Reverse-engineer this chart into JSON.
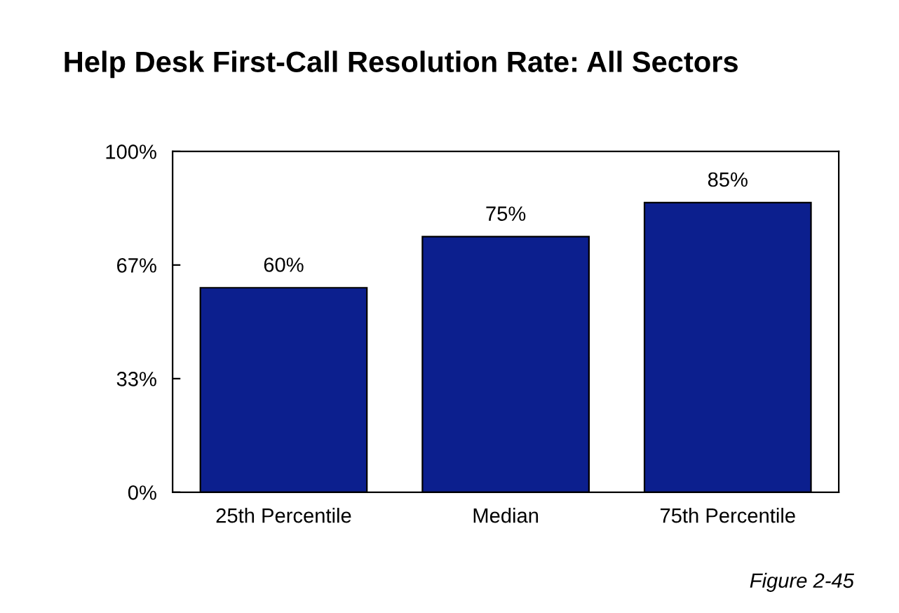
{
  "chart_data": {
    "type": "bar",
    "title": "Help Desk First-Call Resolution Rate: All Sectors",
    "categories": [
      "25th Percentile",
      "Median",
      "75th Percentile"
    ],
    "values": [
      60,
      75,
      85
    ],
    "value_labels": [
      "60%",
      "75%",
      "85%"
    ],
    "color": "#0c1f8e",
    "ylim": [
      0,
      100
    ],
    "yticks": [
      {
        "value": 0,
        "label": "0%"
      },
      {
        "value": 33.33,
        "label": "33%"
      },
      {
        "value": 66.67,
        "label": "67%"
      },
      {
        "value": 100,
        "label": "100%"
      }
    ],
    "grid": false,
    "annotations": [
      "Figure 2-45"
    ]
  }
}
